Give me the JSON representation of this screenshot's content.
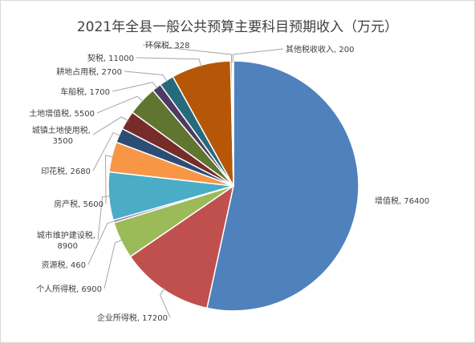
{
  "chart_data": {
    "type": "pie",
    "title": "2021年全县一般公共预算主要科目预期收入（万元）",
    "slices": [
      {
        "name": "增值税",
        "value": 76400,
        "label": "增值税, 76400",
        "color": "#4f81bd"
      },
      {
        "name": "企业所得税",
        "value": 17200,
        "label": "企业所得税, 17200",
        "color": "#c0504d"
      },
      {
        "name": "个人所得税",
        "value": 6900,
        "label": "个人所得税, 6900",
        "color": "#9bbb59"
      },
      {
        "name": "资源税",
        "value": 460,
        "label": "资源税, 460",
        "color": "#8064a2"
      },
      {
        "name": "城市维护建设税",
        "value": 8900,
        "label": [
          "城市维护建设税,",
          "8900"
        ],
        "color": "#4bacc6"
      },
      {
        "name": "房产税",
        "value": 5600,
        "label": "房产税, 5600",
        "color": "#f79646"
      },
      {
        "name": "印花税",
        "value": 2680,
        "label": "印花税, 2680",
        "color": "#2c4d75"
      },
      {
        "name": "城镇土地使用税",
        "value": 3500,
        "label": [
          "城镇土地使用税,",
          "3500"
        ],
        "color": "#772c2a"
      },
      {
        "name": "土地增值税",
        "value": 5500,
        "label": "土地增值税, 5500",
        "color": "#5f7530"
      },
      {
        "name": "车船税",
        "value": 1700,
        "label": "车船税, 1700",
        "color": "#4d3b62"
      },
      {
        "name": "耕地占用税",
        "value": 2700,
        "label": "耕地占用税, 2700",
        "color": "#276a7c"
      },
      {
        "name": "契税",
        "value": 11000,
        "label": "契税, 11000",
        "color": "#b65708"
      },
      {
        "name": "环保税",
        "value": 328,
        "label": "环保税, 328",
        "color": "#729aca"
      },
      {
        "name": "其他税收收入",
        "value": 200,
        "label": "其他税收收入, 200",
        "color": "#d99694"
      }
    ]
  }
}
